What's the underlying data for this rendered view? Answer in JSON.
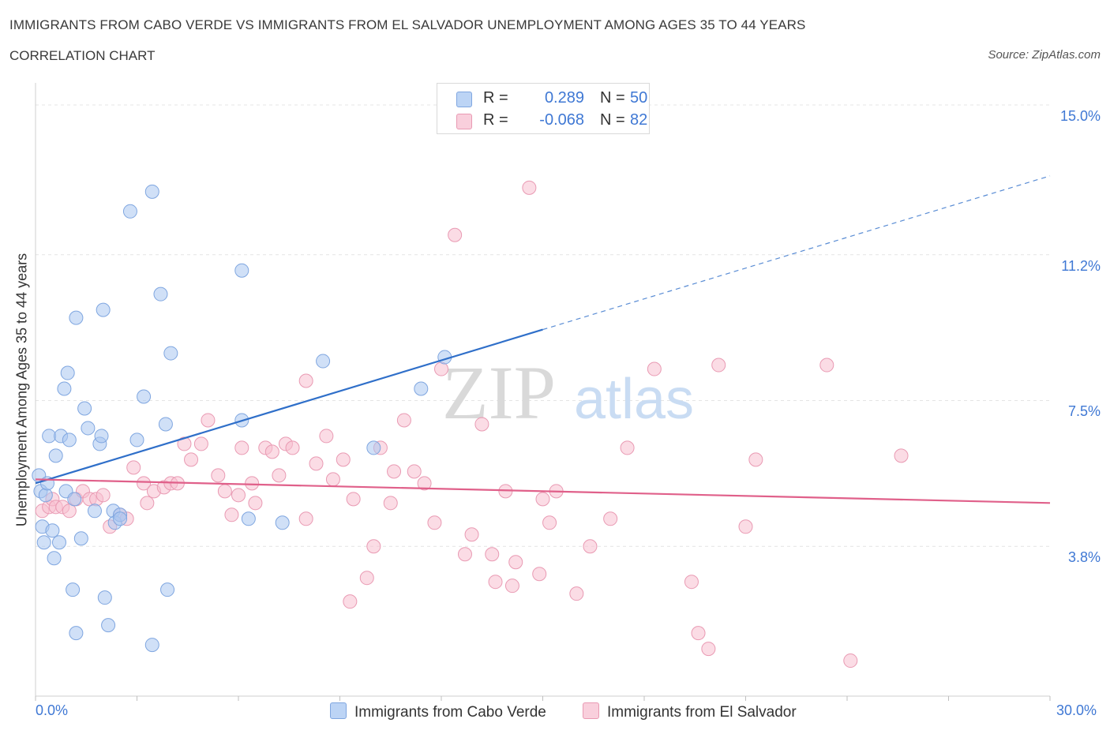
{
  "title": "IMMIGRANTS FROM CABO VERDE VS IMMIGRANTS FROM EL SALVADOR UNEMPLOYMENT AMONG AGES 35 TO 44 YEARS",
  "subtitle": "CORRELATION CHART",
  "source": "Source: ZipAtlas.com",
  "watermark": {
    "zip": "ZIP",
    "atlas": "atlas"
  },
  "legend": {
    "rows": [
      {
        "r_label": "R =",
        "r_value": "0.289",
        "n_label": "N =",
        "n_value": "50",
        "color": "#a9c7f0",
        "border": "#7fa6e0"
      },
      {
        "r_label": "R =",
        "r_value": "-0.068",
        "n_label": "N =",
        "n_value": "82",
        "color": "#f7bfd0",
        "border": "#e99ab3"
      }
    ]
  },
  "bottom_legend": [
    {
      "label": "Immigrants from Cabo Verde",
      "color": "#a9c7f0"
    },
    {
      "label": "Immigrants from El Salvador",
      "color": "#f7bfd0"
    }
  ],
  "chart_data": {
    "type": "scatter",
    "title": "IMMIGRANTS FROM CABO VERDE VS IMMIGRANTS FROM EL SALVADOR UNEMPLOYMENT AMONG AGES 35 TO 44 YEARS",
    "xlabel": "",
    "ylabel": "Unemployment Among Ages 35 to 44 years",
    "xlim": [
      0,
      30
    ],
    "ylim": [
      0,
      15.3
    ],
    "x_tick_labels": [
      "0.0%",
      "30.0%"
    ],
    "y_ticks": [
      3.8,
      7.5,
      11.2,
      15.0
    ],
    "y_tick_labels": [
      "3.8%",
      "7.5%",
      "11.2%",
      "15.0%"
    ],
    "grid": true,
    "series": [
      {
        "name": "Immigrants from Cabo Verde",
        "color": "#a9c7f0",
        "stroke": "#7fa6e0",
        "trend": {
          "x0": 0.0,
          "y0": 5.4,
          "x1": 15.0,
          "y1": 9.3,
          "dash_to_x": 30.0,
          "dash_to_y": 13.2,
          "color": "#2f6fc9"
        },
        "points": [
          [
            0.1,
            5.6
          ],
          [
            0.15,
            5.2
          ],
          [
            0.2,
            4.3
          ],
          [
            0.25,
            3.9
          ],
          [
            0.3,
            5.1
          ],
          [
            0.35,
            5.4
          ],
          [
            0.4,
            6.6
          ],
          [
            0.5,
            4.2
          ],
          [
            0.55,
            3.5
          ],
          [
            0.6,
            6.1
          ],
          [
            0.7,
            3.9
          ],
          [
            0.75,
            6.6
          ],
          [
            0.85,
            7.8
          ],
          [
            0.9,
            5.2
          ],
          [
            0.95,
            8.2
          ],
          [
            1.0,
            6.5
          ],
          [
            1.1,
            2.7
          ],
          [
            1.15,
            5.0
          ],
          [
            1.2,
            9.6
          ],
          [
            1.2,
            1.6
          ],
          [
            1.35,
            4.0
          ],
          [
            1.45,
            7.3
          ],
          [
            1.55,
            6.8
          ],
          [
            1.75,
            4.7
          ],
          [
            1.9,
            6.4
          ],
          [
            1.95,
            6.6
          ],
          [
            2.0,
            9.8
          ],
          [
            2.05,
            2.5
          ],
          [
            2.15,
            1.8
          ],
          [
            2.3,
            4.7
          ],
          [
            2.35,
            4.4
          ],
          [
            2.5,
            4.6
          ],
          [
            2.8,
            12.3
          ],
          [
            3.0,
            6.5
          ],
          [
            3.2,
            7.6
          ],
          [
            3.45,
            12.8
          ],
          [
            3.7,
            10.2
          ],
          [
            3.85,
            6.9
          ],
          [
            3.9,
            2.7
          ],
          [
            4.0,
            8.7
          ],
          [
            3.45,
            1.3
          ],
          [
            6.1,
            10.8
          ],
          [
            6.1,
            7.0
          ],
          [
            6.3,
            4.5
          ],
          [
            7.3,
            4.4
          ],
          [
            8.5,
            8.5
          ],
          [
            10.0,
            6.3
          ],
          [
            11.4,
            7.8
          ],
          [
            12.1,
            8.6
          ],
          [
            2.5,
            4.5
          ]
        ]
      },
      {
        "name": "Immigrants from El Salvador",
        "color": "#f7bfd0",
        "stroke": "#e99ab3",
        "trend": {
          "x0": 0.0,
          "y0": 5.5,
          "x1": 30.0,
          "y1": 4.9,
          "color": "#e0608a"
        },
        "points": [
          [
            0.2,
            4.7
          ],
          [
            0.4,
            4.8
          ],
          [
            0.5,
            5.0
          ],
          [
            0.6,
            4.8
          ],
          [
            0.8,
            4.8
          ],
          [
            1.0,
            4.7
          ],
          [
            1.2,
            5.0
          ],
          [
            1.4,
            5.2
          ],
          [
            1.6,
            5.0
          ],
          [
            1.8,
            5.0
          ],
          [
            2.0,
            5.1
          ],
          [
            2.2,
            4.3
          ],
          [
            2.5,
            4.6
          ],
          [
            2.7,
            4.5
          ],
          [
            2.9,
            5.8
          ],
          [
            3.2,
            5.4
          ],
          [
            3.3,
            4.9
          ],
          [
            3.5,
            5.2
          ],
          [
            3.8,
            5.3
          ],
          [
            4.0,
            5.4
          ],
          [
            4.2,
            5.4
          ],
          [
            4.4,
            6.4
          ],
          [
            4.6,
            6.0
          ],
          [
            4.9,
            6.4
          ],
          [
            5.1,
            7.0
          ],
          [
            5.4,
            5.6
          ],
          [
            5.6,
            5.2
          ],
          [
            5.8,
            4.6
          ],
          [
            6.0,
            5.1
          ],
          [
            6.1,
            6.3
          ],
          [
            6.4,
            5.4
          ],
          [
            6.5,
            4.9
          ],
          [
            6.8,
            6.3
          ],
          [
            7.0,
            6.2
          ],
          [
            7.2,
            5.6
          ],
          [
            7.4,
            6.4
          ],
          [
            7.6,
            6.3
          ],
          [
            8.0,
            4.5
          ],
          [
            8.0,
            8.0
          ],
          [
            8.3,
            5.9
          ],
          [
            8.6,
            6.6
          ],
          [
            8.8,
            5.5
          ],
          [
            9.1,
            6.0
          ],
          [
            9.3,
            2.4
          ],
          [
            9.4,
            5.0
          ],
          [
            9.8,
            3.0
          ],
          [
            10.0,
            3.8
          ],
          [
            10.2,
            6.3
          ],
          [
            10.5,
            4.9
          ],
          [
            10.6,
            5.7
          ],
          [
            10.9,
            7.0
          ],
          [
            11.2,
            5.7
          ],
          [
            11.5,
            5.4
          ],
          [
            11.8,
            4.4
          ],
          [
            12.0,
            8.3
          ],
          [
            12.4,
            11.7
          ],
          [
            12.7,
            3.6
          ],
          [
            12.9,
            4.1
          ],
          [
            13.2,
            6.9
          ],
          [
            13.5,
            3.6
          ],
          [
            13.6,
            2.9
          ],
          [
            13.9,
            5.2
          ],
          [
            14.1,
            2.8
          ],
          [
            14.2,
            3.4
          ],
          [
            14.6,
            12.9
          ],
          [
            14.9,
            3.1
          ],
          [
            15.0,
            5.0
          ],
          [
            15.2,
            4.4
          ],
          [
            15.4,
            5.2
          ],
          [
            16.0,
            2.6
          ],
          [
            16.4,
            3.8
          ],
          [
            17.0,
            4.5
          ],
          [
            17.5,
            6.3
          ],
          [
            18.3,
            8.3
          ],
          [
            19.4,
            2.9
          ],
          [
            19.6,
            1.6
          ],
          [
            19.9,
            1.2
          ],
          [
            20.2,
            8.4
          ],
          [
            21.0,
            4.3
          ],
          [
            21.3,
            6.0
          ],
          [
            23.4,
            8.4
          ],
          [
            24.1,
            0.9
          ],
          [
            25.6,
            6.1
          ]
        ]
      }
    ]
  }
}
